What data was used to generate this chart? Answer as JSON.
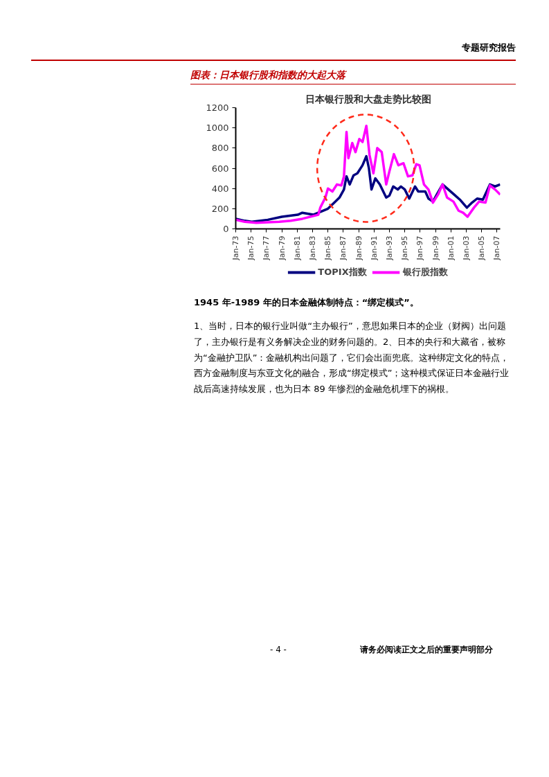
{
  "chart_data": {
    "type": "line",
    "title": "日本银行股和大盘走势比较图",
    "annotations": [
      "专题研究报告",
      "图表：日本银行股和指数的大起大落",
      "1945 年-1989 年的日本金融体制特点：“绑定模式”。",
      "1、当时，日本的银行业叫做“主办银行”，意思如果日本的企业（财阀）出问题了，主办银行是有义务解决企业的财务问题的。2、日本的央行和大藏省，被称为“金融护卫队”：金融机构出问题了，它们会出面兜底。这种绑定文化的特点，西方金融制度与东亚文化的融合，形成“绑定模式”；这种模式保证日本金融行业战后高速持续发展，也为日本 89 年惨烈的金融危机埋下的祸根。",
      "- 4 -",
      "请务必阅读正文之后的重要声明部分"
    ],
    "x": [
      "1973-01",
      "1974-03",
      "1975-02",
      "1977-03",
      "1979-01",
      "1981-02",
      "1981-09",
      "1983-02",
      "1984-02",
      "1985-01",
      "1985-11",
      "1986-07",
      "1987-02",
      "1987-06",
      "1987-11",
      "1988-05",
      "1988-11",
      "1989-07",
      "1990-01",
      "1990-05",
      "1990-09",
      "1991-03",
      "1991-10",
      "1992-08",
      "1993-01",
      "1993-07",
      "1994-02",
      "1994-07",
      "1995-01",
      "1995-08",
      "1996-05",
      "1996-10",
      "1997-09",
      "1998-02",
      "1998-09",
      "1999-03",
      "1999-12",
      "2000-09",
      "2001-06",
      "2002-03",
      "2003-02",
      "2003-10",
      "2004-06",
      "2005-03",
      "2006-02",
      "2006-10",
      "2007-06"
    ],
    "series": [
      {
        "name": "TOPIX指数",
        "color": "#000080",
        "values": [
          100,
          80,
          70,
          90,
          120,
          140,
          160,
          140,
          170,
          200,
          260,
          310,
          390,
          520,
          440,
          530,
          550,
          630,
          720,
          600,
          390,
          500,
          440,
          310,
          330,
          420,
          390,
          420,
          390,
          300,
          420,
          370,
          370,
          300,
          270,
          340,
          440,
          390,
          340,
          290,
          210,
          260,
          300,
          290,
          440,
          420,
          440
        ]
      },
      {
        "name": "银行股指数",
        "color": "#ff00ff",
        "x": [
          "1973-01",
          "1974-03",
          "1975-09",
          "1978-09",
          "1980-03",
          "1981-09",
          "1983-10",
          "1984-01",
          "1984-09",
          "1985-01",
          "1985-08",
          "1986-03",
          "1986-10",
          "1987-02",
          "1987-06",
          "1987-09",
          "1988-03",
          "1988-08",
          "1989-02",
          "1989-07",
          "1990-01",
          "1990-06",
          "1990-12",
          "1991-06",
          "1992-01",
          "1992-08",
          "1993-01",
          "1993-08",
          "1994-03",
          "1994-11",
          "1995-06",
          "1996-01",
          "1996-07",
          "1996-12",
          "1997-07",
          "1998-02",
          "1998-09",
          "1999-05",
          "1999-12",
          "2000-07",
          "2001-05",
          "2002-01",
          "2002-08",
          "2003-03",
          "2004-01",
          "2004-09",
          "2005-07",
          "2006-02",
          "2006-10",
          "2007-06"
        ],
        "values": [
          90,
          70,
          60,
          70,
          80,
          100,
          140,
          210,
          310,
          400,
          370,
          440,
          430,
          520,
          960,
          700,
          850,
          760,
          890,
          860,
          1020,
          730,
          550,
          800,
          760,
          440,
          570,
          740,
          630,
          650,
          520,
          530,
          640,
          630,
          440,
          390,
          260,
          340,
          440,
          310,
          270,
          180,
          160,
          120,
          210,
          270,
          260,
          430,
          390,
          340
        ]
      }
    ],
    "xlim": [
      "1973-01",
      "2007-06"
    ],
    "xticks": [
      {
        "value": "1973-01",
        "label": "Jan-73"
      },
      {
        "value": "1975-01",
        "label": "Jan-75"
      },
      {
        "value": "1977-01",
        "label": "Jan-77"
      },
      {
        "value": "1979-01",
        "label": "Jan-79"
      },
      {
        "value": "1981-01",
        "label": "Jan-81"
      },
      {
        "value": "1983-01",
        "label": "Jan-83"
      },
      {
        "value": "1985-01",
        "label": "Jan-85"
      },
      {
        "value": "1987-01",
        "label": "Jan-87"
      },
      {
        "value": "1989-01",
        "label": "Jan-89"
      },
      {
        "value": "1991-01",
        "label": "Jan-91"
      },
      {
        "value": "1993-01",
        "label": "Jan-93"
      },
      {
        "value": "1995-01",
        "label": "Jan-95"
      },
      {
        "value": "1997-01",
        "label": "Jan-97"
      },
      {
        "value": "1999-01",
        "label": "Jan-99"
      },
      {
        "value": "2001-01",
        "label": "Jan-01"
      },
      {
        "value": "2003-01",
        "label": "Jan-03"
      },
      {
        "value": "2005-01",
        "label": "Jan-05"
      },
      {
        "value": "2007-01",
        "label": "Jan-07"
      }
    ],
    "ylim": [
      0,
      1200
    ],
    "yticks": [
      0,
      200,
      400,
      600,
      800,
      1000,
      1200
    ],
    "grid": false,
    "legend": "bottom",
    "line_style": "solid",
    "marker": "none"
  }
}
